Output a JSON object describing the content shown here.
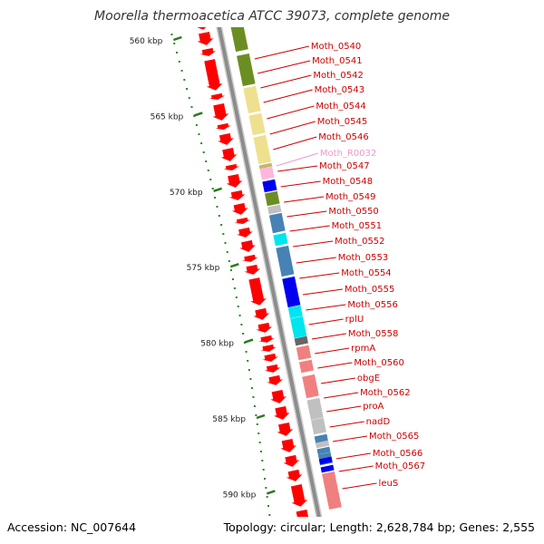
{
  "title": "Moorella thermoacetica ATCC 39073, complete genome",
  "footer": {
    "accession": "Accession: NC_007644",
    "summary": "Topology: circular; Length: 2,628,784 bp; Genes: 2,555"
  },
  "colors": {
    "backbone": "#8c8c8c",
    "tick": "#2a7a1f",
    "dots": "#2a8a1f",
    "arrow": "#ff0000",
    "leader": "#ff0000",
    "label": "#cc0000",
    "rna_label": "#ee99cc"
  },
  "ticks": [
    {
      "kbp": 560,
      "label": "560 kbp"
    },
    {
      "kbp": 565,
      "label": "565 kbp"
    },
    {
      "kbp": 570,
      "label": "570 kbp"
    },
    {
      "kbp": 575,
      "label": "575 kbp"
    },
    {
      "kbp": 580,
      "label": "580 kbp"
    },
    {
      "kbp": 585,
      "label": "585 kbp"
    },
    {
      "kbp": 590,
      "label": "590 kbp"
    }
  ],
  "genes": [
    {
      "name": "Moth_0540",
      "color": "#9aaa3c"
    },
    {
      "name": "Moth_0541",
      "color": "#6b8e23"
    },
    {
      "name": "Moth_0542",
      "color": "#6b8e23"
    },
    {
      "name": "Moth_0543",
      "color": "#eee08e"
    },
    {
      "name": "Moth_0544",
      "color": "#eee08e"
    },
    {
      "name": "Moth_0545",
      "color": "#eee08e"
    },
    {
      "name": "Moth_0546",
      "color": "#c8b46e"
    },
    {
      "name": "Moth_R0032",
      "color": "#ffb6dc",
      "kind": "rna"
    },
    {
      "name": "Moth_0547",
      "color": "#0000ee"
    },
    {
      "name": "Moth_0548",
      "color": "#6b8e23"
    },
    {
      "name": "Moth_0549",
      "color": "#c0c0c0"
    },
    {
      "name": "Moth_0550",
      "color": "#4682b4"
    },
    {
      "name": "Moth_0551",
      "color": "#00e5ee"
    },
    {
      "name": "Moth_0552",
      "color": "#4682b4"
    },
    {
      "name": "Moth_0553",
      "color": "#0000ee"
    },
    {
      "name": "Moth_0554",
      "color": "#00e5ee"
    },
    {
      "name": "Moth_0555",
      "color": "#00e5ee"
    },
    {
      "name": "Moth_0556",
      "color": "#666666"
    },
    {
      "name": "rplU",
      "color": "#f08080"
    },
    {
      "name": "Moth_0558",
      "color": "#f08080"
    },
    {
      "name": "rpmA",
      "color": "#f08080"
    },
    {
      "name": "Moth_0560",
      "color": "#c0c0c0"
    },
    {
      "name": "obgE",
      "color": "#c0c0c0"
    },
    {
      "name": "Moth_0562",
      "color": "#4682b4"
    },
    {
      "name": "proA",
      "color": "#4682b4"
    },
    {
      "name": "nadD",
      "color": "#4682b4"
    },
    {
      "name": "Moth_0565",
      "color": "#0000ee"
    },
    {
      "name": "Moth_0566",
      "color": "#c0c0c0"
    },
    {
      "name": "Moth_0567",
      "color": "#0000ee"
    },
    {
      "name": "leuS",
      "color": "#f08080"
    }
  ]
}
